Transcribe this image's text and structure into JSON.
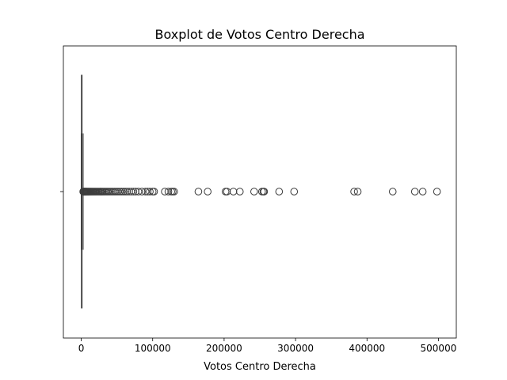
{
  "chart_data": {
    "type": "boxplot",
    "orientation": "horizontal",
    "title": "Boxplot de Votos Centro Derecha",
    "xlabel": "Votos Centro Derecha",
    "ylabel": "",
    "xlim": [
      -25000,
      525000
    ],
    "xticks": [
      0,
      100000,
      200000,
      300000,
      400000,
      500000
    ],
    "xtick_labels": [
      "0",
      "100000",
      "200000",
      "300000",
      "400000",
      "500000"
    ],
    "yticks": [
      ""
    ],
    "grid": false,
    "box": {
      "min": 0,
      "q1": 200,
      "median": 600,
      "q3": 1200,
      "whisker_low": 0,
      "whisker_high": 2700
    },
    "outliers": [
      2800,
      3000,
      3300,
      3600,
      4000,
      4400,
      4800,
      5300,
      5800,
      6300,
      6900,
      7500,
      8200,
      9000,
      9800,
      10500,
      11400,
      12300,
      13200,
      14200,
      15300,
      16400,
      17600,
      18800,
      20000,
      21300,
      22700,
      24000,
      25500,
      27000,
      28500,
      30000,
      31600,
      33200,
      35000,
      36800,
      38600,
      40500,
      42500,
      44500,
      46800,
      49000,
      51500,
      54000,
      56500,
      59000,
      61500,
      64000,
      67000,
      70000,
      73000,
      76000,
      80000,
      85000,
      90000,
      93000,
      96000,
      100000,
      102000,
      117000,
      122000,
      126000,
      128000,
      130000,
      164000,
      177000,
      202000,
      204000,
      213000,
      222000,
      242000,
      253000,
      255000,
      256000,
      277000,
      298000,
      382000,
      387000,
      436000,
      467000,
      478000,
      498000
    ],
    "colors": {
      "box_edge": "#3d3d3d",
      "outlier_edge": "#3d3d3d",
      "axis": "#000000"
    }
  }
}
